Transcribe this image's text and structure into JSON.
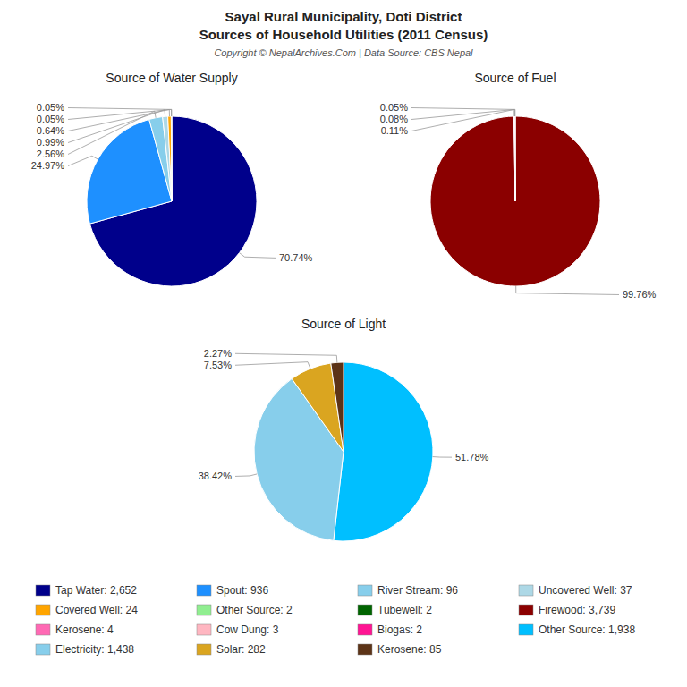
{
  "title": [
    "Sayal Rural Municipality, Doti District",
    "Sources of Household Utilities (2011 Census)"
  ],
  "subtitle": "Copyright © NepalArchives.Com | Data Source: CBS Nepal",
  "chart_data": [
    {
      "type": "pie",
      "title": "Source of Water Supply",
      "categories": [
        "Tap Water: 2,652",
        "Spout: 936",
        "River Stream: 96",
        "Uncovered Well: 37",
        "Covered Well: 24",
        "Other Source: 2",
        "Tubewell: 2"
      ],
      "values": [
        70.74,
        24.97,
        2.56,
        0.99,
        0.64,
        0.05,
        0.05
      ],
      "value_labels": [
        "70.74%",
        "24.97%",
        "2.56%",
        "0.99%",
        "0.64%",
        "0.05%",
        "0.05%"
      ],
      "colors": [
        "#00008B",
        "#1E90FF",
        "#87CEEB",
        "#ADD8E6",
        "#FFA500",
        "#90EE90",
        "#006400"
      ],
      "data_labels": true,
      "legend": "bottom"
    },
    {
      "type": "pie",
      "title": "Source of Fuel",
      "categories": [
        "Firewood: 3,739",
        "Kerosene: 4",
        "Cow Dung: 3",
        "Biogas: 2"
      ],
      "values": [
        99.76,
        0.11,
        0.08,
        0.05
      ],
      "value_labels": [
        "99.76%",
        "0.11%",
        "0.08%",
        "0.05%"
      ],
      "colors": [
        "#8B0000",
        "#FF69B4",
        "#FFB6C1",
        "#FF1493"
      ],
      "data_labels": true,
      "legend": "bottom"
    },
    {
      "type": "pie",
      "title": "Source of Light",
      "categories": [
        "Other Source: 1,938",
        "Electricity: 1,438",
        "Solar: 282",
        "Kerosene: 85"
      ],
      "values": [
        51.78,
        38.42,
        7.53,
        2.27
      ],
      "value_labels": [
        "51.78%",
        "38.42%",
        "7.53%",
        "2.27%"
      ],
      "colors": [
        "#00BFFF",
        "#87CEEB",
        "#DAA520",
        "#5C3317"
      ],
      "data_labels": true,
      "legend": "bottom"
    }
  ]
}
